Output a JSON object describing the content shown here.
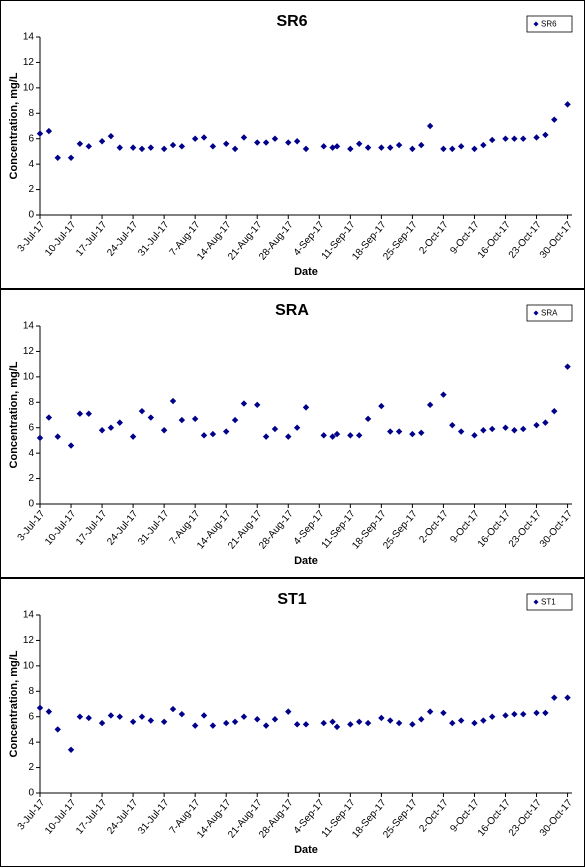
{
  "chart_data": [
    {
      "type": "scatter",
      "title": "SR6",
      "x_label": "Date",
      "y_label": "Concentration, mg/L",
      "x": [
        "2017-07-03",
        "2017-07-05",
        "2017-07-07",
        "2017-07-10",
        "2017-07-12",
        "2017-07-14",
        "2017-07-17",
        "2017-07-19",
        "2017-07-21",
        "2017-07-24",
        "2017-07-26",
        "2017-07-28",
        "2017-07-31",
        "2017-08-02",
        "2017-08-04",
        "2017-08-07",
        "2017-08-09",
        "2017-08-11",
        "2017-08-14",
        "2017-08-16",
        "2017-08-18",
        "2017-08-21",
        "2017-08-23",
        "2017-08-25",
        "2017-08-28",
        "2017-08-30",
        "2017-09-01",
        "2017-09-05",
        "2017-09-07",
        "2017-09-08",
        "2017-09-11",
        "2017-09-13",
        "2017-09-15",
        "2017-09-18",
        "2017-09-20",
        "2017-09-22",
        "2017-09-25",
        "2017-09-27",
        "2017-09-29",
        "2017-10-02",
        "2017-10-04",
        "2017-10-06",
        "2017-10-09",
        "2017-10-11",
        "2017-10-13",
        "2017-10-16",
        "2017-10-18",
        "2017-10-20",
        "2017-10-23",
        "2017-10-25",
        "2017-10-27",
        "2017-10-30"
      ],
      "series": [
        {
          "name": "SR6",
          "color": "#00008b",
          "values": [
            6.4,
            6.6,
            4.5,
            4.5,
            5.6,
            5.4,
            5.8,
            6.2,
            5.3,
            5.3,
            5.2,
            5.3,
            5.2,
            5.5,
            5.4,
            6.0,
            6.1,
            5.4,
            5.6,
            5.2,
            6.1,
            5.7,
            5.7,
            6.0,
            5.7,
            5.8,
            5.2,
            5.4,
            5.3,
            5.4,
            5.2,
            5.6,
            5.3,
            5.3,
            5.3,
            5.5,
            5.2,
            5.5,
            7.0,
            5.2,
            5.2,
            5.4,
            5.2,
            5.5,
            5.9,
            6.0,
            6.0,
            6.0,
            6.1,
            6.3,
            7.5,
            8.7
          ]
        }
      ],
      "xlim": [
        "2017-07-03",
        "2017-10-31"
      ],
      "xticks": [
        {
          "value": "2017-07-03",
          "label": "3-Jul-17"
        },
        {
          "value": "2017-07-10",
          "label": "10-Jul-17"
        },
        {
          "value": "2017-07-17",
          "label": "17-Jul-17"
        },
        {
          "value": "2017-07-24",
          "label": "24-Jul-17"
        },
        {
          "value": "2017-07-31",
          "label": "31-Jul-17"
        },
        {
          "value": "2017-08-07",
          "label": "7-Aug-17"
        },
        {
          "value": "2017-08-14",
          "label": "14-Aug-17"
        },
        {
          "value": "2017-08-21",
          "label": "21-Aug-17"
        },
        {
          "value": "2017-08-28",
          "label": "28-Aug-17"
        },
        {
          "value": "2017-09-04",
          "label": "4-Sep-17"
        },
        {
          "value": "2017-09-11",
          "label": "11-Sep-17"
        },
        {
          "value": "2017-09-18",
          "label": "18-Sep-17"
        },
        {
          "value": "2017-09-25",
          "label": "25-Sep-17"
        },
        {
          "value": "2017-10-02",
          "label": "2-Oct-17"
        },
        {
          "value": "2017-10-09",
          "label": "9-Oct-17"
        },
        {
          "value": "2017-10-16",
          "label": "16-Oct-17"
        },
        {
          "value": "2017-10-23",
          "label": "23-Oct-17"
        },
        {
          "value": "2017-10-30",
          "label": "30-Oct-17"
        }
      ],
      "ylim": [
        0,
        14
      ],
      "yticks": [
        0,
        2,
        4,
        6,
        8,
        10,
        12,
        14
      ],
      "legend": "upper right"
    },
    {
      "type": "scatter",
      "title": "SRA",
      "x_label": "Date",
      "y_label": "Concentration, mg/L",
      "x": [
        "2017-07-03",
        "2017-07-05",
        "2017-07-07",
        "2017-07-10",
        "2017-07-12",
        "2017-07-14",
        "2017-07-17",
        "2017-07-19",
        "2017-07-21",
        "2017-07-24",
        "2017-07-26",
        "2017-07-28",
        "2017-07-31",
        "2017-08-02",
        "2017-08-04",
        "2017-08-07",
        "2017-08-09",
        "2017-08-11",
        "2017-08-14",
        "2017-08-16",
        "2017-08-18",
        "2017-08-21",
        "2017-08-23",
        "2017-08-25",
        "2017-08-28",
        "2017-08-30",
        "2017-09-01",
        "2017-09-05",
        "2017-09-07",
        "2017-09-08",
        "2017-09-11",
        "2017-09-13",
        "2017-09-15",
        "2017-09-18",
        "2017-09-20",
        "2017-09-22",
        "2017-09-25",
        "2017-09-27",
        "2017-09-29",
        "2017-10-02",
        "2017-10-04",
        "2017-10-06",
        "2017-10-09",
        "2017-10-11",
        "2017-10-13",
        "2017-10-16",
        "2017-10-18",
        "2017-10-20",
        "2017-10-23",
        "2017-10-25",
        "2017-10-27",
        "2017-10-30"
      ],
      "series": [
        {
          "name": "SRA",
          "color": "#00008b",
          "values": [
            5.2,
            6.8,
            5.3,
            4.6,
            7.1,
            7.1,
            5.8,
            6.0,
            6.4,
            5.3,
            7.3,
            6.8,
            5.8,
            8.1,
            6.6,
            6.7,
            5.4,
            5.5,
            5.7,
            6.6,
            7.9,
            7.8,
            5.3,
            5.9,
            5.3,
            6.0,
            7.6,
            5.4,
            5.3,
            5.5,
            5.4,
            5.4,
            6.7,
            7.7,
            5.7,
            5.7,
            5.5,
            5.6,
            7.8,
            8.6,
            6.2,
            5.7,
            5.4,
            5.8,
            5.9,
            6.0,
            5.8,
            5.9,
            6.2,
            6.4,
            7.3,
            10.8
          ]
        }
      ],
      "xlim": [
        "2017-07-03",
        "2017-10-31"
      ],
      "xticks": [
        {
          "value": "2017-07-03",
          "label": "3-Jul-17"
        },
        {
          "value": "2017-07-10",
          "label": "10-Jul-17"
        },
        {
          "value": "2017-07-17",
          "label": "17-Jul-17"
        },
        {
          "value": "2017-07-24",
          "label": "24-Jul-17"
        },
        {
          "value": "2017-07-31",
          "label": "31-Jul-17"
        },
        {
          "value": "2017-08-07",
          "label": "7-Aug-17"
        },
        {
          "value": "2017-08-14",
          "label": "14-Aug-17"
        },
        {
          "value": "2017-08-21",
          "label": "21-Aug-17"
        },
        {
          "value": "2017-08-28",
          "label": "28-Aug-17"
        },
        {
          "value": "2017-09-04",
          "label": "4-Sep-17"
        },
        {
          "value": "2017-09-11",
          "label": "11-Sep-17"
        },
        {
          "value": "2017-09-18",
          "label": "18-Sep-17"
        },
        {
          "value": "2017-09-25",
          "label": "25-Sep-17"
        },
        {
          "value": "2017-10-02",
          "label": "2-Oct-17"
        },
        {
          "value": "2017-10-09",
          "label": "9-Oct-17"
        },
        {
          "value": "2017-10-16",
          "label": "16-Oct-17"
        },
        {
          "value": "2017-10-23",
          "label": "23-Oct-17"
        },
        {
          "value": "2017-10-30",
          "label": "30-Oct-17"
        }
      ],
      "ylim": [
        0,
        14
      ],
      "yticks": [
        0,
        2,
        4,
        6,
        8,
        10,
        12,
        14
      ],
      "legend": "upper right"
    },
    {
      "type": "scatter",
      "title": "ST1",
      "x_label": "Date",
      "y_label": "Concentration, mg/L",
      "x": [
        "2017-07-03",
        "2017-07-05",
        "2017-07-07",
        "2017-07-10",
        "2017-07-12",
        "2017-07-14",
        "2017-07-17",
        "2017-07-19",
        "2017-07-21",
        "2017-07-24",
        "2017-07-26",
        "2017-07-28",
        "2017-07-31",
        "2017-08-02",
        "2017-08-04",
        "2017-08-07",
        "2017-08-09",
        "2017-08-11",
        "2017-08-14",
        "2017-08-16",
        "2017-08-18",
        "2017-08-21",
        "2017-08-23",
        "2017-08-25",
        "2017-08-28",
        "2017-08-30",
        "2017-09-01",
        "2017-09-05",
        "2017-09-07",
        "2017-09-08",
        "2017-09-11",
        "2017-09-13",
        "2017-09-15",
        "2017-09-18",
        "2017-09-20",
        "2017-09-22",
        "2017-09-25",
        "2017-09-27",
        "2017-09-29",
        "2017-10-02",
        "2017-10-04",
        "2017-10-06",
        "2017-10-09",
        "2017-10-11",
        "2017-10-13",
        "2017-10-16",
        "2017-10-18",
        "2017-10-20",
        "2017-10-23",
        "2017-10-25",
        "2017-10-27",
        "2017-10-30"
      ],
      "series": [
        {
          "name": "ST1",
          "color": "#00008b",
          "values": [
            6.7,
            6.4,
            5.0,
            3.4,
            6.0,
            5.9,
            5.5,
            6.1,
            6.0,
            5.6,
            6.0,
            5.7,
            5.6,
            6.6,
            6.2,
            5.3,
            6.1,
            5.3,
            5.5,
            5.6,
            6.0,
            5.8,
            5.3,
            5.8,
            6.4,
            5.4,
            5.4,
            5.5,
            5.6,
            5.2,
            5.4,
            5.6,
            5.5,
            5.9,
            5.7,
            5.5,
            5.4,
            5.8,
            6.4,
            6.3,
            5.5,
            5.7,
            5.5,
            5.7,
            6.0,
            6.1,
            6.2,
            6.2,
            6.3,
            6.3,
            7.5,
            7.5
          ]
        }
      ],
      "xlim": [
        "2017-07-03",
        "2017-10-31"
      ],
      "xticks": [
        {
          "value": "2017-07-03",
          "label": "3-Jul-17"
        },
        {
          "value": "2017-07-10",
          "label": "10-Jul-17"
        },
        {
          "value": "2017-07-17",
          "label": "17-Jul-17"
        },
        {
          "value": "2017-07-24",
          "label": "24-Jul-17"
        },
        {
          "value": "2017-07-31",
          "label": "31-Jul-17"
        },
        {
          "value": "2017-08-07",
          "label": "7-Aug-17"
        },
        {
          "value": "2017-08-14",
          "label": "14-Aug-17"
        },
        {
          "value": "2017-08-21",
          "label": "21-Aug-17"
        },
        {
          "value": "2017-08-28",
          "label": "28-Aug-17"
        },
        {
          "value": "2017-09-04",
          "label": "4-Sep-17"
        },
        {
          "value": "2017-09-11",
          "label": "11-Sep-17"
        },
        {
          "value": "2017-09-18",
          "label": "18-Sep-17"
        },
        {
          "value": "2017-09-25",
          "label": "25-Sep-17"
        },
        {
          "value": "2017-10-02",
          "label": "2-Oct-17"
        },
        {
          "value": "2017-10-09",
          "label": "9-Oct-17"
        },
        {
          "value": "2017-10-16",
          "label": "16-Oct-17"
        },
        {
          "value": "2017-10-23",
          "label": "23-Oct-17"
        },
        {
          "value": "2017-10-30",
          "label": "30-Oct-17"
        }
      ],
      "ylim": [
        0,
        14
      ],
      "yticks": [
        0,
        2,
        4,
        6,
        8,
        10,
        12,
        14
      ],
      "legend": "upper right"
    }
  ]
}
